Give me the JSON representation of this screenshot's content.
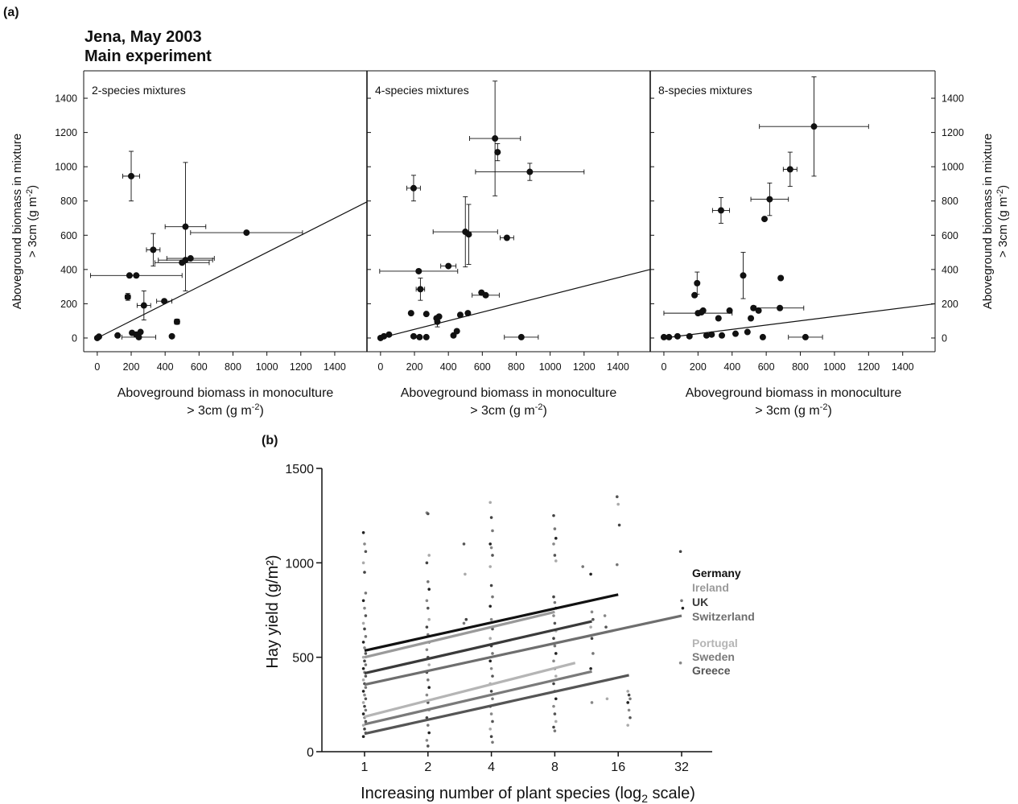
{
  "panel_a": {
    "label": "(a)",
    "title_line1": "Jena, May 2003",
    "title_line2": "Main experiment",
    "ylabel_line1": "Aboveground biomass in mixture",
    "ylabel_line2": "> 3cm (g m",
    "ylabel_sup": "-2",
    "ylabel_close": ")",
    "xlabel_line1": "Aboveground biomass in monoculture",
    "xlabel_line2": "> 3cm (g m",
    "xlabel_sup": "-2",
    "xlabel_close": ")",
    "subplot_titles": [
      "2-species mixtures",
      "4-species mixtures",
      "8-species mixtures"
    ]
  },
  "panel_b": {
    "label": "(b)",
    "ylabel": "Hay yield (g/m²)",
    "xlabel_main": "Increasing number of plant species (log",
    "xlabel_sub": "2",
    "xlabel_end": " scale)"
  },
  "chart_data": [
    {
      "type": "scatter",
      "title": "2-species mixtures",
      "xlabel": "Aboveground biomass in monoculture > 3cm (g m-2)",
      "ylabel": "Aboveground biomass in mixture > 3cm (g m-2)",
      "xlim": [
        -80,
        1590
      ],
      "ylim": [
        -80,
        1560
      ],
      "xticks": [
        0,
        200,
        400,
        600,
        800,
        1000,
        1200,
        1400
      ],
      "yticks": [
        0,
        200,
        400,
        600,
        800,
        1000,
        1200,
        1400
      ],
      "reference_line": {
        "from": [
          0,
          0
        ],
        "to": [
          1590,
          795
        ]
      },
      "points": [
        {
          "x": 200,
          "y": 945,
          "xerr": 50,
          "yerr": 145
        },
        {
          "x": 330,
          "y": 515,
          "xerr": 40,
          "yerr": 95
        },
        {
          "x": 520,
          "y": 650,
          "xerr": 120,
          "yerr": 375
        },
        {
          "x": 880,
          "y": 615,
          "xerr": 330,
          "yerr": 0
        },
        {
          "x": 190,
          "y": 365,
          "xerr": 0,
          "yerr": 0
        },
        {
          "x": 230,
          "y": 365,
          "xerr": 270,
          "yerr": 0
        },
        {
          "x": 500,
          "y": 440,
          "xerr": 160,
          "yerr": 0
        },
        {
          "x": 520,
          "y": 455,
          "xerr": 160,
          "yerr": 0
        },
        {
          "x": 550,
          "y": 465,
          "xerr": 140,
          "yerr": 0
        },
        {
          "x": 180,
          "y": 240,
          "xerr": 15,
          "yerr": 20
        },
        {
          "x": 275,
          "y": 190,
          "xerr": 40,
          "yerr": 85
        },
        {
          "x": 395,
          "y": 215,
          "xerr": 45,
          "yerr": 0
        },
        {
          "x": 470,
          "y": 95,
          "xerr": 15,
          "yerr": 15
        },
        {
          "x": 10,
          "y": 8,
          "xerr": 0,
          "yerr": 0
        },
        {
          "x": 0,
          "y": 0,
          "xerr": 0,
          "yerr": 0
        },
        {
          "x": 120,
          "y": 15,
          "xerr": 0,
          "yerr": 0
        },
        {
          "x": 205,
          "y": 30,
          "xerr": 0,
          "yerr": 0
        },
        {
          "x": 230,
          "y": 20,
          "xerr": 0,
          "yerr": 0
        },
        {
          "x": 245,
          "y": 5,
          "xerr": 100,
          "yerr": 0
        },
        {
          "x": 255,
          "y": 35,
          "xerr": 0,
          "yerr": 0
        },
        {
          "x": 440,
          "y": 10,
          "xerr": 0,
          "yerr": 0
        }
      ]
    },
    {
      "type": "scatter",
      "title": "4-species mixtures",
      "xlim": [
        -80,
        1590
      ],
      "ylim": [
        -80,
        1560
      ],
      "xticks": [
        0,
        200,
        400,
        600,
        800,
        1000,
        1200,
        1400
      ],
      "yticks": [
        0,
        200,
        400,
        600,
        800,
        1000,
        1200,
        1400
      ],
      "reference_line": {
        "from": [
          0,
          0
        ],
        "to": [
          1590,
          400
        ]
      },
      "points": [
        {
          "x": 675,
          "y": 1165,
          "xerr": 150,
          "yerr": 335
        },
        {
          "x": 690,
          "y": 1085,
          "xerr": 0,
          "yerr": 50
        },
        {
          "x": 880,
          "y": 970,
          "xerr": 320,
          "yerr": 50
        },
        {
          "x": 195,
          "y": 875,
          "xerr": 40,
          "yerr": 75
        },
        {
          "x": 500,
          "y": 620,
          "xerr": 190,
          "yerr": 205
        },
        {
          "x": 520,
          "y": 605,
          "xerr": 0,
          "yerr": 175
        },
        {
          "x": 745,
          "y": 585,
          "xerr": 40,
          "yerr": 0
        },
        {
          "x": 225,
          "y": 390,
          "xerr": 230,
          "yerr": 0
        },
        {
          "x": 400,
          "y": 420,
          "xerr": 45,
          "yerr": 0
        },
        {
          "x": 235,
          "y": 285,
          "xerr": 25,
          "yerr": 65
        },
        {
          "x": 595,
          "y": 265,
          "xerr": 0,
          "yerr": 0
        },
        {
          "x": 620,
          "y": 250,
          "xerr": 80,
          "yerr": 0
        },
        {
          "x": 180,
          "y": 145,
          "xerr": 0,
          "yerr": 0
        },
        {
          "x": 270,
          "y": 140,
          "xerr": 0,
          "yerr": 0
        },
        {
          "x": 330,
          "y": 115,
          "xerr": 0,
          "yerr": 0
        },
        {
          "x": 345,
          "y": 125,
          "xerr": 0,
          "yerr": 0
        },
        {
          "x": 335,
          "y": 95,
          "xerr": 0,
          "yerr": 30
        },
        {
          "x": 470,
          "y": 135,
          "xerr": 0,
          "yerr": 0
        },
        {
          "x": 515,
          "y": 145,
          "xerr": 0,
          "yerr": 0
        },
        {
          "x": 450,
          "y": 40,
          "xerr": 0,
          "yerr": 0
        },
        {
          "x": 430,
          "y": 15,
          "xerr": 0,
          "yerr": 0
        },
        {
          "x": 830,
          "y": 5,
          "xerr": 100,
          "yerr": 0
        },
        {
          "x": 0,
          "y": 0,
          "xerr": 0,
          "yerr": 0
        },
        {
          "x": 20,
          "y": 10,
          "xerr": 0,
          "yerr": 0
        },
        {
          "x": 50,
          "y": 20,
          "xerr": 0,
          "yerr": 0
        },
        {
          "x": 195,
          "y": 10,
          "xerr": 0,
          "yerr": 0
        },
        {
          "x": 230,
          "y": 5,
          "xerr": 0,
          "yerr": 0
        },
        {
          "x": 270,
          "y": 5,
          "xerr": 0,
          "yerr": 0
        }
      ]
    },
    {
      "type": "scatter",
      "title": "8-species mixtures",
      "xlim": [
        -80,
        1590
      ],
      "ylim": [
        -80,
        1560
      ],
      "xticks": [
        0,
        200,
        400,
        600,
        800,
        1000,
        1200,
        1400
      ],
      "yticks": [
        0,
        200,
        400,
        600,
        800,
        1000,
        1200,
        1400
      ],
      "reference_line": {
        "from": [
          0,
          0
        ],
        "to": [
          1590,
          200
        ]
      },
      "points": [
        {
          "x": 880,
          "y": 1235,
          "xerr": 320,
          "yerr": 290
        },
        {
          "x": 740,
          "y": 985,
          "xerr": 40,
          "yerr": 100
        },
        {
          "x": 620,
          "y": 810,
          "xerr": 110,
          "yerr": 95
        },
        {
          "x": 335,
          "y": 745,
          "xerr": 50,
          "yerr": 75
        },
        {
          "x": 590,
          "y": 695,
          "xerr": 0,
          "yerr": 0
        },
        {
          "x": 465,
          "y": 365,
          "xerr": 0,
          "yerr": 135
        },
        {
          "x": 685,
          "y": 350,
          "xerr": 0,
          "yerr": 0
        },
        {
          "x": 195,
          "y": 320,
          "xerr": 0,
          "yerr": 65
        },
        {
          "x": 180,
          "y": 250,
          "xerr": 0,
          "yerr": 0
        },
        {
          "x": 200,
          "y": 145,
          "xerr": 200,
          "yerr": 0
        },
        {
          "x": 220,
          "y": 150,
          "xerr": 0,
          "yerr": 0
        },
        {
          "x": 230,
          "y": 160,
          "xerr": 0,
          "yerr": 0
        },
        {
          "x": 385,
          "y": 160,
          "xerr": 0,
          "yerr": 0
        },
        {
          "x": 525,
          "y": 175,
          "xerr": 0,
          "yerr": 0
        },
        {
          "x": 555,
          "y": 160,
          "xerr": 0,
          "yerr": 0
        },
        {
          "x": 680,
          "y": 175,
          "xerr": 140,
          "yerr": 0
        },
        {
          "x": 320,
          "y": 115,
          "xerr": 0,
          "yerr": 0
        },
        {
          "x": 510,
          "y": 115,
          "xerr": 0,
          "yerr": 0
        },
        {
          "x": 0,
          "y": 5,
          "xerr": 0,
          "yerr": 0
        },
        {
          "x": 30,
          "y": 5,
          "xerr": 0,
          "yerr": 0
        },
        {
          "x": 80,
          "y": 10,
          "xerr": 0,
          "yerr": 0
        },
        {
          "x": 150,
          "y": 10,
          "xerr": 0,
          "yerr": 0
        },
        {
          "x": 250,
          "y": 15,
          "xerr": 0,
          "yerr": 0
        },
        {
          "x": 280,
          "y": 20,
          "xerr": 0,
          "yerr": 0
        },
        {
          "x": 340,
          "y": 15,
          "xerr": 0,
          "yerr": 0
        },
        {
          "x": 420,
          "y": 25,
          "xerr": 0,
          "yerr": 0
        },
        {
          "x": 490,
          "y": 35,
          "xerr": 0,
          "yerr": 0
        },
        {
          "x": 580,
          "y": 5,
          "xerr": 0,
          "yerr": 0
        },
        {
          "x": 830,
          "y": 5,
          "xerr": 100,
          "yerr": 0
        }
      ]
    },
    {
      "type": "scatter",
      "title": "",
      "xlabel": "Increasing number of plant species (log2 scale)",
      "ylabel": "Hay yield (g/m²)",
      "x_scale": "log2",
      "xlim": [
        0.75,
        40
      ],
      "ylim": [
        0,
        1500
      ],
      "xticks": [
        1,
        2,
        4,
        8,
        16,
        32
      ],
      "yticks": [
        0,
        500,
        1000,
        1500
      ],
      "series": [
        {
          "name": "Germany",
          "color": "#111111",
          "line": {
            "x": [
              1,
              16
            ],
            "y": [
              535,
              832
            ]
          }
        },
        {
          "name": "Ireland",
          "color": "#9a9a9a",
          "line": {
            "x": [
              1,
              8
            ],
            "y": [
              500,
              740
            ]
          }
        },
        {
          "name": "UK",
          "color": "#3a3a3a",
          "line": {
            "x": [
              1,
              12
            ],
            "y": [
              415,
              690
            ]
          }
        },
        {
          "name": "Switzerland",
          "color": "#6e6e6e",
          "line": {
            "x": [
              1,
              32
            ],
            "y": [
              355,
              720
            ]
          }
        },
        {
          "name": "Portugal",
          "color": "#b5b5b5",
          "line": {
            "x": [
              1,
              10
            ],
            "y": [
              185,
              470
            ]
          }
        },
        {
          "name": "Sweden",
          "color": "#7a7a7a",
          "line": {
            "x": [
              1,
              12
            ],
            "y": [
              145,
              425
            ]
          }
        },
        {
          "name": "Greece",
          "color": "#555555",
          "line": {
            "x": [
              1,
              18
            ],
            "y": [
              95,
              405
            ]
          }
        }
      ],
      "scatter_columns": [
        {
          "x": 1,
          "y": [
            1160,
            1100,
            1060,
            1000,
            950,
            840,
            800,
            760,
            720,
            680,
            650,
            610,
            580,
            550,
            520,
            500,
            480,
            460,
            440,
            420,
            400,
            380,
            360,
            340,
            320,
            300,
            280,
            260,
            240,
            220,
            200,
            180,
            160,
            140,
            120,
            100,
            80
          ]
        },
        {
          "x": 2,
          "y": [
            1265,
            1260,
            1040,
            1000,
            900,
            860,
            800,
            760,
            700,
            660,
            620,
            580,
            540,
            500,
            460,
            420,
            380,
            340,
            300,
            260,
            220,
            180,
            140,
            100,
            60,
            30
          ]
        },
        {
          "x": 3,
          "y": [
            1100,
            940,
            700,
            680
          ]
        },
        {
          "x": 4,
          "y": [
            1320,
            1240,
            1170,
            1100,
            1080,
            1040,
            980,
            880,
            820,
            770,
            700,
            650,
            600,
            560,
            520,
            480,
            440,
            400,
            360,
            320,
            280,
            240,
            200,
            160,
            120,
            80,
            50
          ]
        },
        {
          "x": 8,
          "y": [
            1250,
            1180,
            1130,
            1100,
            1040,
            1010,
            820,
            790,
            760,
            720,
            680,
            640,
            600,
            560,
            520,
            480,
            440,
            400,
            360,
            320,
            280,
            240,
            200,
            160,
            130,
            110
          ]
        },
        {
          "x": 11,
          "y": [
            980
          ]
        },
        {
          "x": 12,
          "y": [
            940,
            740,
            700,
            660,
            600,
            520,
            440,
            260
          ]
        },
        {
          "x": 14,
          "y": [
            720,
            660,
            280
          ]
        },
        {
          "x": 16,
          "y": [
            1350,
            1310,
            1200,
            990
          ]
        },
        {
          "x": 18,
          "y": [
            320,
            300,
            280,
            260,
            220,
            180,
            140
          ]
        },
        {
          "x": 32,
          "y": [
            1060,
            800,
            760,
            470
          ]
        }
      ]
    }
  ]
}
